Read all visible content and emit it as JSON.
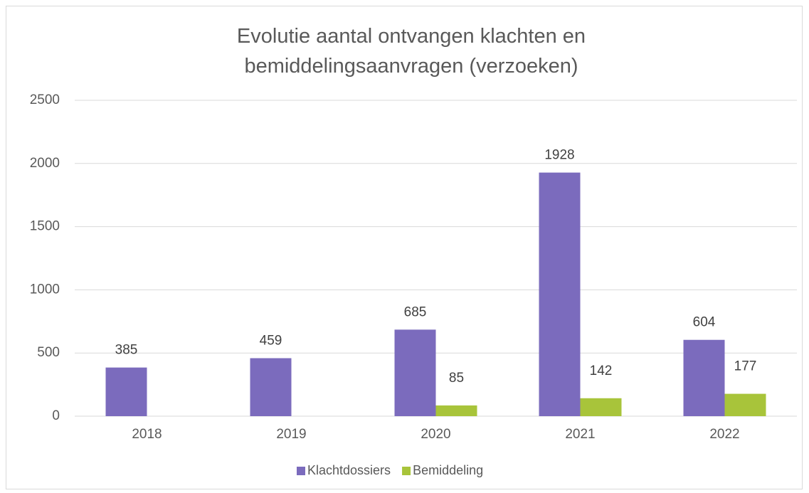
{
  "chart_data": {
    "type": "bar",
    "title": "Evolutie aantal ontvangen klachten en bemiddelingsaanvragen (verzoeken)",
    "categories": [
      "2018",
      "2019",
      "2020",
      "2021",
      "2022"
    ],
    "series": [
      {
        "name": "Klachtdossiers",
        "color": "#7b6bbd",
        "values": [
          385,
          459,
          685,
          1928,
          604
        ]
      },
      {
        "name": "Bemiddeling",
        "color": "#a8c43a",
        "values": [
          null,
          null,
          85,
          142,
          177
        ]
      }
    ],
    "ylim": [
      0,
      2500
    ],
    "yticks": [
      0,
      500,
      1000,
      1500,
      2000,
      2500
    ],
    "grid": true,
    "legend": "bottom"
  }
}
